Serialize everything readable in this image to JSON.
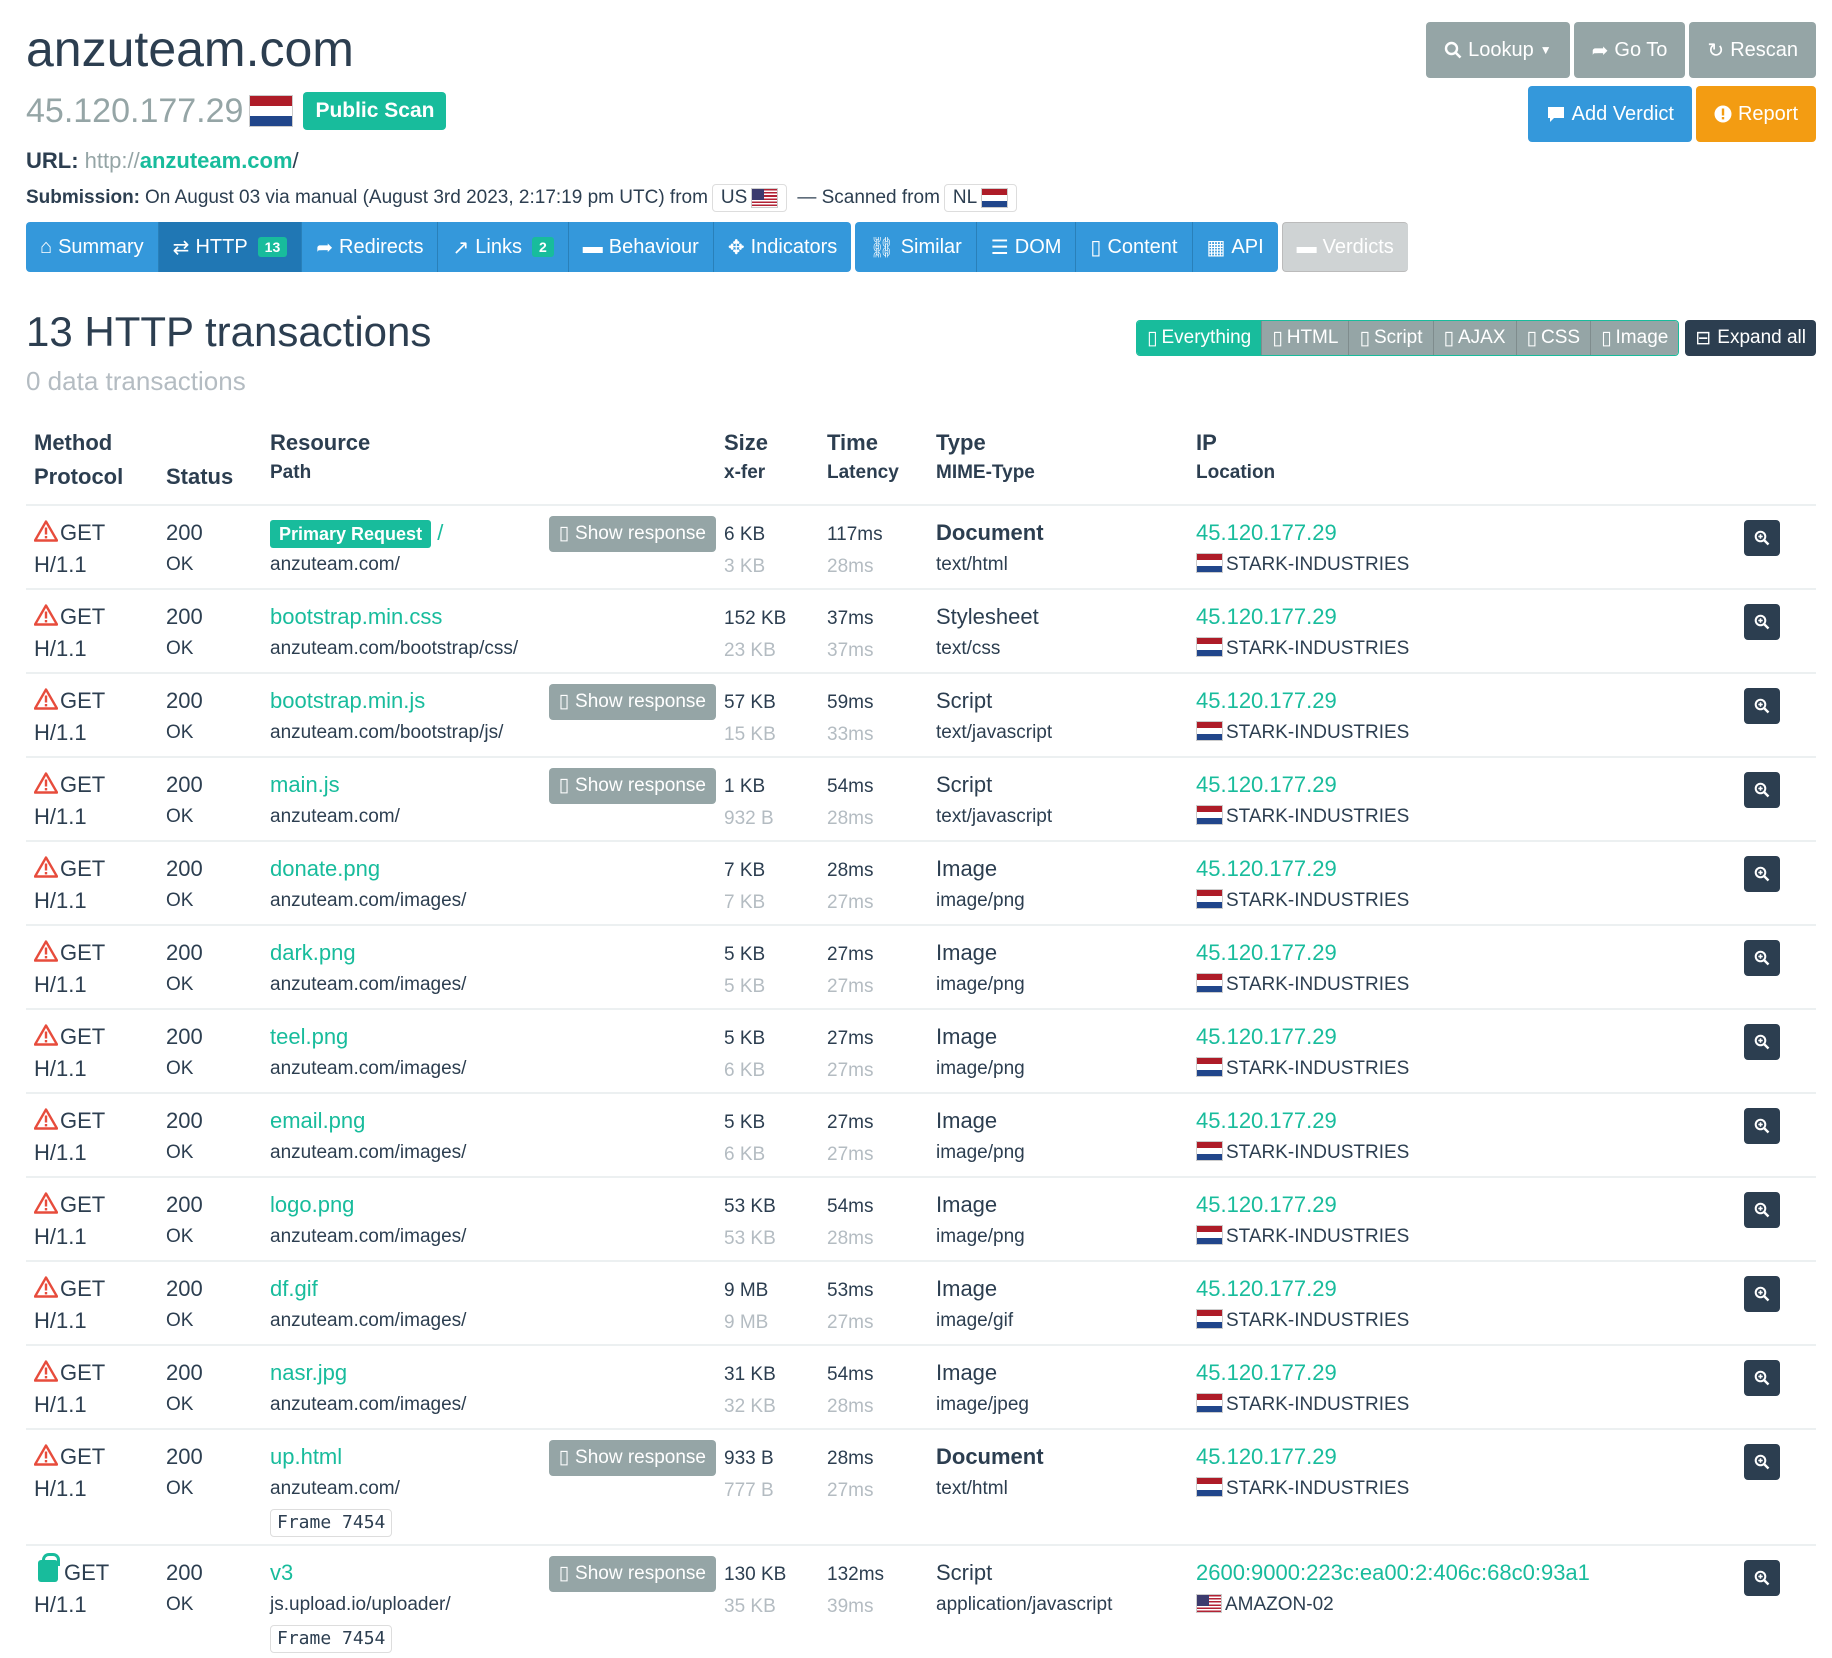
{
  "header": {
    "domain": "anzuteam.com",
    "ip": "45.120.177.29",
    "public_scan": "Public Scan",
    "url_label": "URL:",
    "url_scheme": "http://",
    "url_domain": "anzuteam.com",
    "url_path": "/",
    "submission_label": "Submission:",
    "submission_text": "On August 03 via manual (August 3rd 2023, 2:17:19 pm UTC) from",
    "submission_country": "US",
    "scanned_from_text": "— Scanned from",
    "scanned_country": "NL"
  },
  "actions": {
    "lookup": "Lookup",
    "goto": "Go To",
    "rescan": "Rescan",
    "add_verdict": "Add Verdict",
    "report": "Report"
  },
  "tabs": {
    "summary": "Summary",
    "http": "HTTP",
    "http_count": "13",
    "redirects": "Redirects",
    "links": "Links",
    "links_count": "2",
    "behaviour": "Behaviour",
    "indicators": "Indicators",
    "similar": "Similar",
    "dom": "DOM",
    "content": "Content",
    "api": "API",
    "verdicts": "Verdicts"
  },
  "section": {
    "title": "13 HTTP transactions",
    "subtitle": "0 data transactions"
  },
  "filters": {
    "everything": "Everything",
    "html": "HTML",
    "script": "Script",
    "ajax": "AJAX",
    "css": "CSS",
    "image": "Image",
    "expand_all": "Expand all"
  },
  "table": {
    "headers": {
      "method": "Method",
      "protocol": "Protocol",
      "status": "Status",
      "resource": "Resource",
      "path": "Path",
      "size": "Size",
      "xfer": "x-fer",
      "time": "Time",
      "latency": "Latency",
      "type": "Type",
      "mime": "MIME-Type",
      "ip": "IP",
      "location": "Location"
    },
    "show_response": "Show response",
    "primary_request": "Primary Request",
    "rows": [
      {
        "method": "GET",
        "protocol": "H/1.1",
        "status": "200",
        "status_text": "OK",
        "resource": "/",
        "path": "anzuteam.com/",
        "size": "6 KB",
        "xfer": "3 KB",
        "time": "117ms",
        "latency": "28ms",
        "type": "Document",
        "mime": "text/html",
        "ip": "45.120.177.29",
        "location": "STARK-INDUSTRIES"
      },
      {
        "method": "GET",
        "protocol": "H/1.1",
        "status": "200",
        "status_text": "OK",
        "resource": "bootstrap.min.css",
        "path": "anzuteam.com/bootstrap/css/",
        "size": "152 KB",
        "xfer": "23 KB",
        "time": "37ms",
        "latency": "37ms",
        "type": "Stylesheet",
        "mime": "text/css",
        "ip": "45.120.177.29",
        "location": "STARK-INDUSTRIES"
      },
      {
        "method": "GET",
        "protocol": "H/1.1",
        "status": "200",
        "status_text": "OK",
        "resource": "bootstrap.min.js",
        "path": "anzuteam.com/bootstrap/js/",
        "size": "57 KB",
        "xfer": "15 KB",
        "time": "59ms",
        "latency": "33ms",
        "type": "Script",
        "mime": "text/javascript",
        "ip": "45.120.177.29",
        "location": "STARK-INDUSTRIES"
      },
      {
        "method": "GET",
        "protocol": "H/1.1",
        "status": "200",
        "status_text": "OK",
        "resource": "main.js",
        "path": "anzuteam.com/",
        "size": "1 KB",
        "xfer": "932 B",
        "time": "54ms",
        "latency": "28ms",
        "type": "Script",
        "mime": "text/javascript",
        "ip": "45.120.177.29",
        "location": "STARK-INDUSTRIES"
      },
      {
        "method": "GET",
        "protocol": "H/1.1",
        "status": "200",
        "status_text": "OK",
        "resource": "donate.png",
        "path": "anzuteam.com/images/",
        "size": "7 KB",
        "xfer": "7 KB",
        "time": "28ms",
        "latency": "27ms",
        "type": "Image",
        "mime": "image/png",
        "ip": "45.120.177.29",
        "location": "STARK-INDUSTRIES"
      },
      {
        "method": "GET",
        "protocol": "H/1.1",
        "status": "200",
        "status_text": "OK",
        "resource": "dark.png",
        "path": "anzuteam.com/images/",
        "size": "5 KB",
        "xfer": "5 KB",
        "time": "27ms",
        "latency": "27ms",
        "type": "Image",
        "mime": "image/png",
        "ip": "45.120.177.29",
        "location": "STARK-INDUSTRIES"
      },
      {
        "method": "GET",
        "protocol": "H/1.1",
        "status": "200",
        "status_text": "OK",
        "resource": "teel.png",
        "path": "anzuteam.com/images/",
        "size": "5 KB",
        "xfer": "6 KB",
        "time": "27ms",
        "latency": "27ms",
        "type": "Image",
        "mime": "image/png",
        "ip": "45.120.177.29",
        "location": "STARK-INDUSTRIES"
      },
      {
        "method": "GET",
        "protocol": "H/1.1",
        "status": "200",
        "status_text": "OK",
        "resource": "email.png",
        "path": "anzuteam.com/images/",
        "size": "5 KB",
        "xfer": "6 KB",
        "time": "27ms",
        "latency": "27ms",
        "type": "Image",
        "mime": "image/png",
        "ip": "45.120.177.29",
        "location": "STARK-INDUSTRIES"
      },
      {
        "method": "GET",
        "protocol": "H/1.1",
        "status": "200",
        "status_text": "OK",
        "resource": "logo.png",
        "path": "anzuteam.com/images/",
        "size": "53 KB",
        "xfer": "53 KB",
        "time": "54ms",
        "latency": "28ms",
        "type": "Image",
        "mime": "image/png",
        "ip": "45.120.177.29",
        "location": "STARK-INDUSTRIES"
      },
      {
        "method": "GET",
        "protocol": "H/1.1",
        "status": "200",
        "status_text": "OK",
        "resource": "df.gif",
        "path": "anzuteam.com/images/",
        "size": "9 MB",
        "xfer": "9 MB",
        "time": "53ms",
        "latency": "27ms",
        "type": "Image",
        "mime": "image/gif",
        "ip": "45.120.177.29",
        "location": "STARK-INDUSTRIES"
      },
      {
        "method": "GET",
        "protocol": "H/1.1",
        "status": "200",
        "status_text": "OK",
        "resource": "nasr.jpg",
        "path": "anzuteam.com/images/",
        "size": "31 KB",
        "xfer": "32 KB",
        "time": "54ms",
        "latency": "28ms",
        "type": "Image",
        "mime": "image/jpeg",
        "ip": "45.120.177.29",
        "location": "STARK-INDUSTRIES"
      },
      {
        "method": "GET",
        "protocol": "H/1.1",
        "status": "200",
        "status_text": "OK",
        "resource": "up.html",
        "path": "anzuteam.com/",
        "frame": "Frame 7454",
        "size": "933 B",
        "xfer": "777 B",
        "time": "28ms",
        "latency": "27ms",
        "type": "Document",
        "mime": "text/html",
        "ip": "45.120.177.29",
        "location": "STARK-INDUSTRIES"
      },
      {
        "method": "GET",
        "protocol": "H/1.1",
        "status": "200",
        "status_text": "OK",
        "resource": "v3",
        "path": "js.upload.io/uploader/",
        "frame": "Frame 7454",
        "size": "130 KB",
        "xfer": "35 KB",
        "time": "132ms",
        "latency": "39ms",
        "type": "Script",
        "mime": "application/javascript",
        "ip": "2600:9000:223c:ea00:2:406c:68c0:93a1",
        "location": "AMAZON-02"
      }
    ]
  },
  "colors": {
    "primary": "#2c3e50",
    "success": "#18bc9c",
    "info": "#3498db",
    "warning": "#f39c12",
    "muted": "#95a5a6",
    "danger": "#e74c3c"
  }
}
